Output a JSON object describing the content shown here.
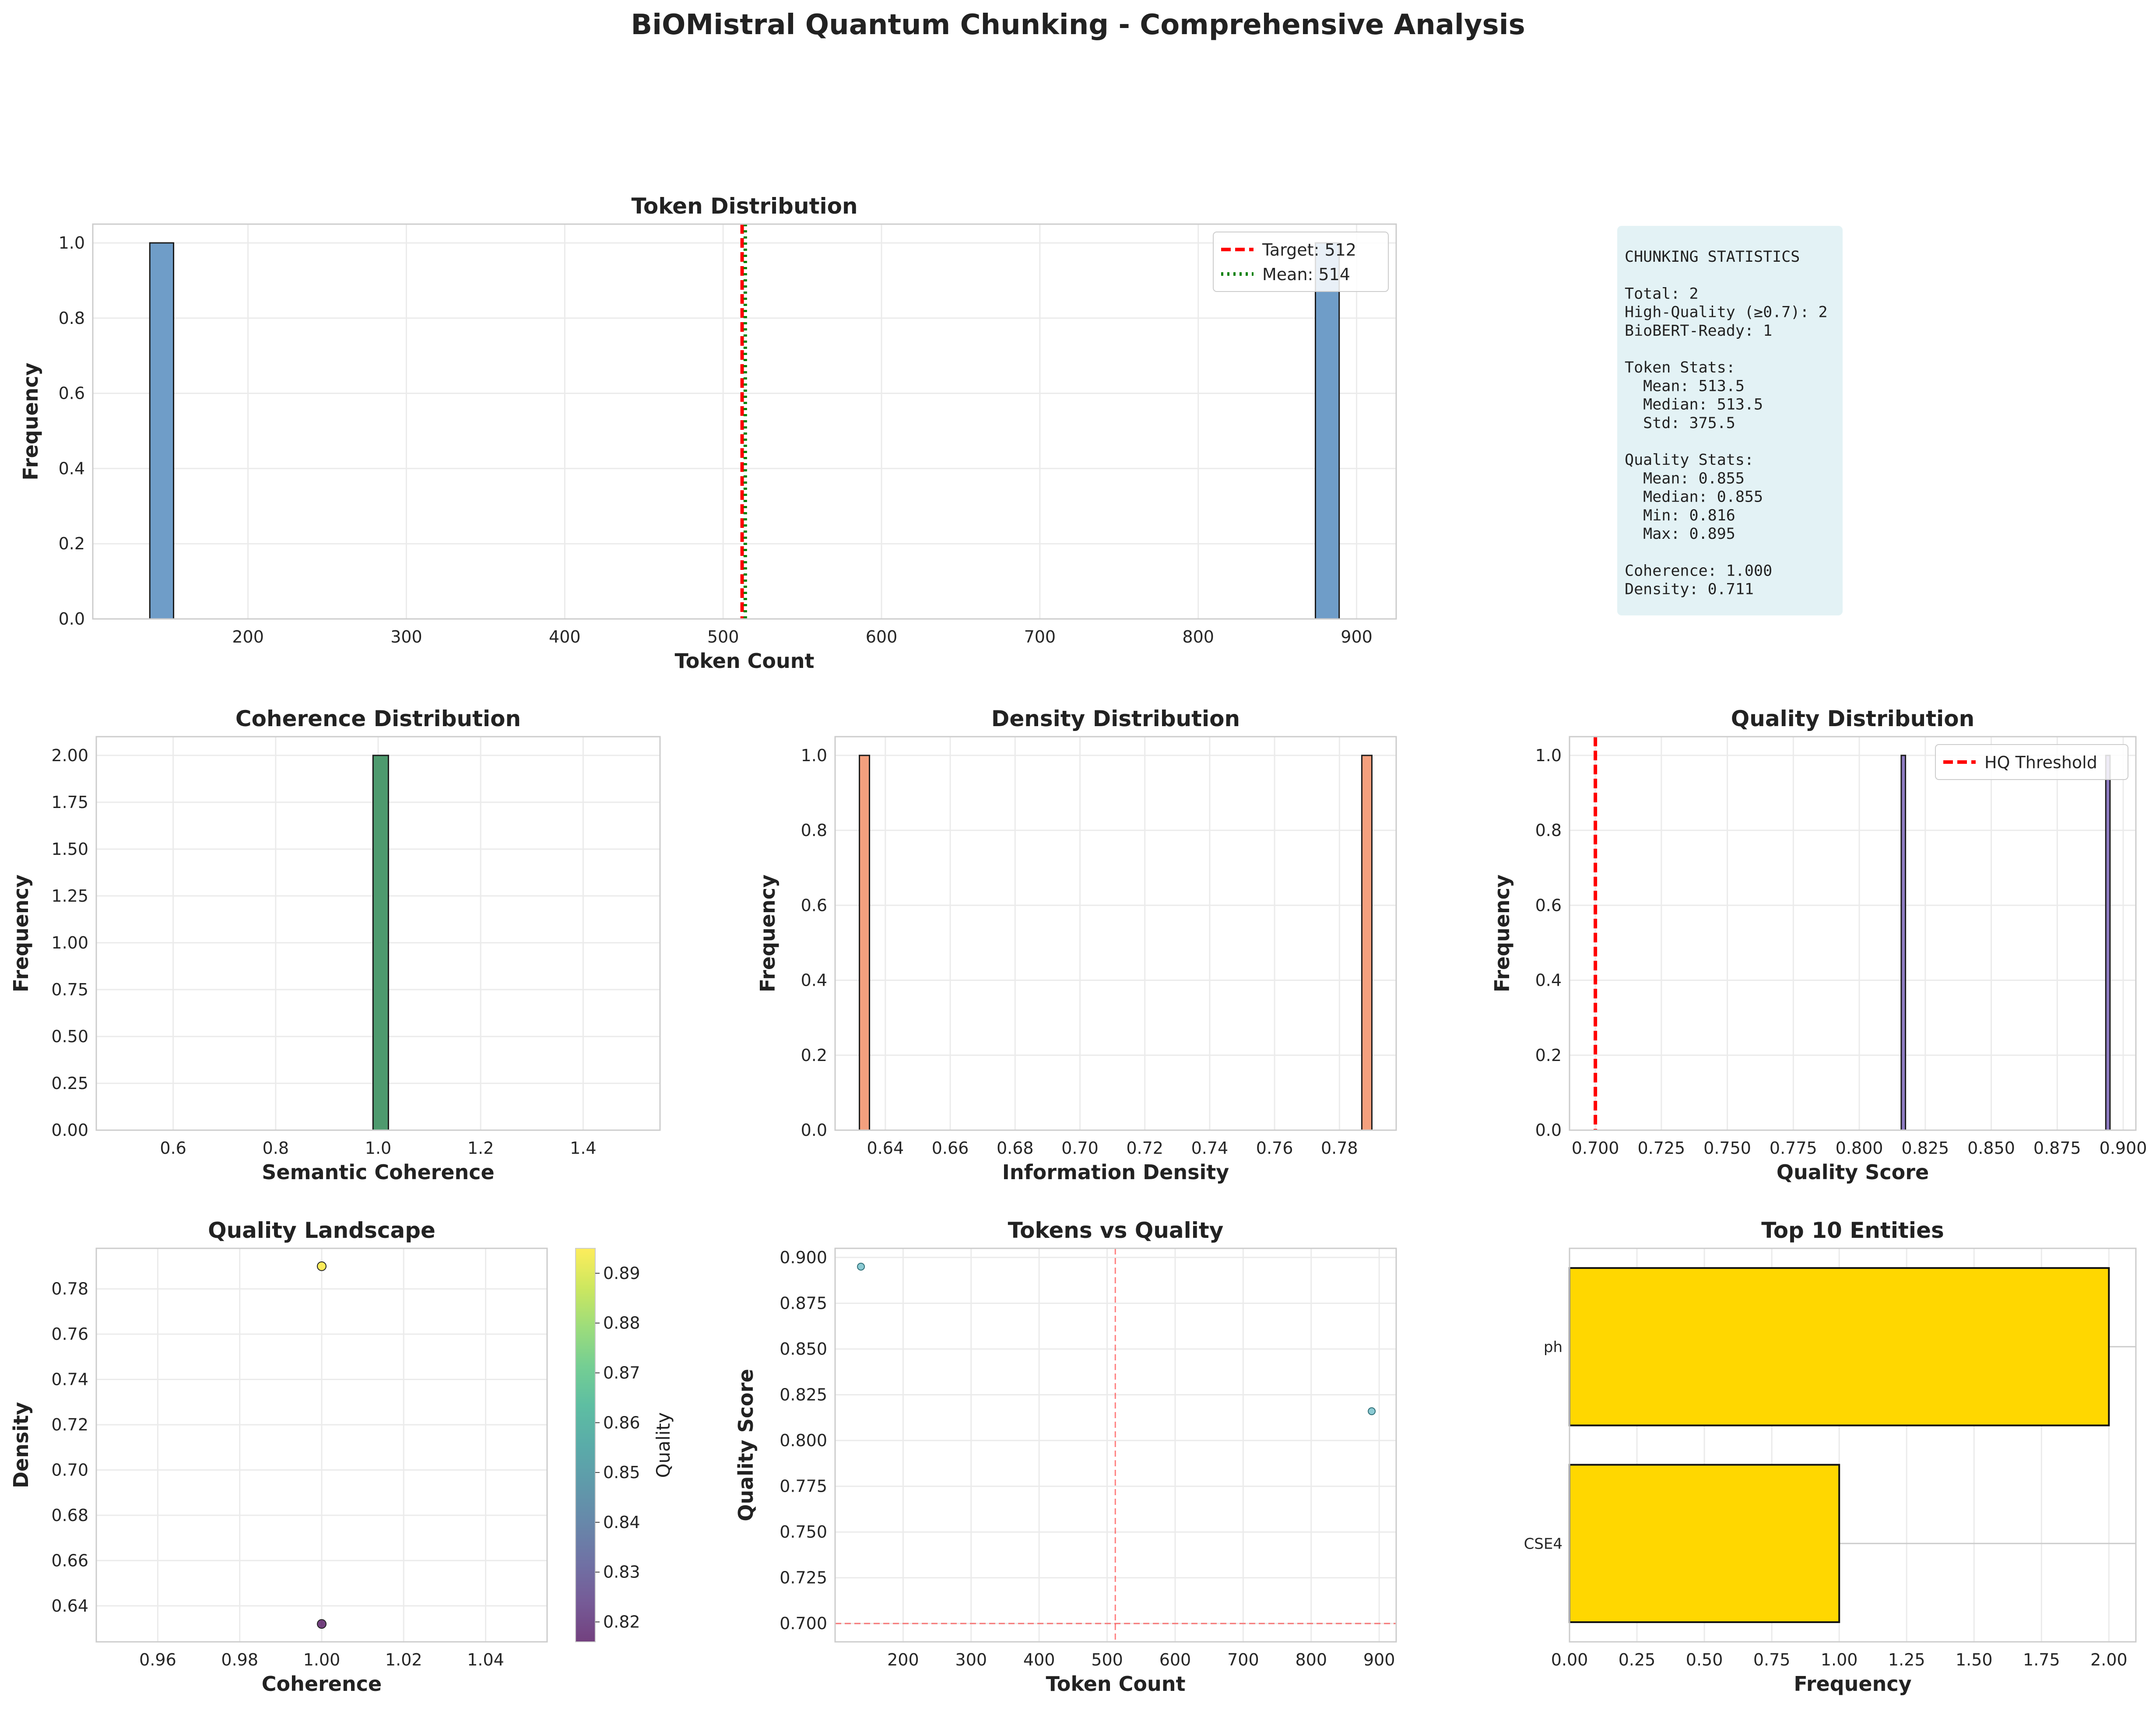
{
  "figure": {
    "suptitle": "BiOMistral Quantum Chunking - Comprehensive Analysis"
  },
  "colors": {
    "token_bar": "#6f9dc8",
    "coherence_bar": "#4e9a6e",
    "density_bar": "#f4a07e",
    "quality_bar": "#8e7cc3",
    "entity_bar": "#ffd700",
    "ref_red": "#ff0000",
    "ref_green": "#008000",
    "stats_box": "#e3f2f5"
  },
  "stats_panel": {
    "lines": [
      "CHUNKING STATISTICS",
      "",
      "Total: 2",
      "High-Quality (≥0.7): 2",
      "BioBERT-Ready: 1",
      "",
      "Token Stats:",
      "  Mean: 513.5",
      "  Median: 513.5",
      "  Std: 375.5",
      "",
      "Quality Stats:",
      "  Mean: 0.855",
      "  Median: 0.855",
      "  Min: 0.816",
      "  Max: 0.895",
      "",
      "Coherence: 1.000",
      "Density: 0.711"
    ]
  },
  "chart_data": [
    {
      "id": "token",
      "type": "bar",
      "title": "Token Distribution",
      "xlabel": "Token Count",
      "ylabel": "Frequency",
      "xlim": [
        102,
        925
      ],
      "ylim": [
        0,
        1.05
      ],
      "xticks": [
        200,
        300,
        400,
        500,
        600,
        700,
        800,
        900
      ],
      "yticks": [
        0.0,
        0.2,
        0.4,
        0.6,
        0.8,
        1.0
      ],
      "bars": [
        {
          "x0": 138,
          "x1": 153,
          "y": 1
        },
        {
          "x0": 874,
          "x1": 889,
          "y": 1
        }
      ],
      "baseline": [
        138,
        889
      ],
      "vlines": [
        {
          "x": 512,
          "style": "dashed",
          "color": "#ff0000",
          "label": "Target: 512"
        },
        {
          "x": 514,
          "style": "dotted",
          "color": "#008000",
          "label": "Mean: 514"
        }
      ],
      "legend": "upper-right",
      "grid": true
    },
    {
      "id": "coherence",
      "type": "bar",
      "title": "Coherence Distribution",
      "xlabel": "Semantic Coherence",
      "ylabel": "Frequency",
      "xlim": [
        0.45,
        1.55
      ],
      "ylim": [
        0,
        2.1
      ],
      "xticks": [
        0.6,
        0.8,
        1.0,
        1.2,
        1.4
      ],
      "yticks": [
        0.0,
        0.25,
        0.5,
        0.75,
        1.0,
        1.25,
        1.5,
        1.75,
        2.0
      ],
      "bars": [
        {
          "x0": 0.99,
          "x1": 1.02,
          "y": 2
        }
      ],
      "baseline": [
        0.5,
        1.5
      ],
      "grid": true
    },
    {
      "id": "density",
      "type": "bar",
      "title": "Density Distribution",
      "xlabel": "Information Density",
      "ylabel": "Frequency",
      "xlim": [
        0.6245,
        0.7975
      ],
      "ylim": [
        0,
        1.05
      ],
      "xticks": [
        0.64,
        0.66,
        0.68,
        0.7,
        0.72,
        0.74,
        0.76,
        0.78
      ],
      "yticks": [
        0.0,
        0.2,
        0.4,
        0.6,
        0.8,
        1.0
      ],
      "bars": [
        {
          "x0": 0.632,
          "x1": 0.6351,
          "y": 1
        },
        {
          "x0": 0.7869,
          "x1": 0.79,
          "y": 1
        }
      ],
      "baseline": [
        0.632,
        0.79
      ],
      "grid": true
    },
    {
      "id": "quality",
      "type": "bar",
      "title": "Quality Distribution",
      "xlabel": "Quality Score",
      "ylabel": "Frequency",
      "xlim": [
        0.6902,
        0.9048
      ],
      "ylim": [
        0,
        1.05
      ],
      "xticks": [
        0.7,
        0.725,
        0.75,
        0.775,
        0.8,
        0.825,
        0.85,
        0.875,
        0.9
      ],
      "tick_labels": [
        "0.700",
        "0.725",
        "0.750",
        "0.775",
        "0.800",
        "0.825",
        "0.850",
        "0.875",
        "0.900"
      ],
      "yticks": [
        0.0,
        0.2,
        0.4,
        0.6,
        0.8,
        1.0
      ],
      "bars": [
        {
          "x0": 0.8159,
          "x1": 0.8175,
          "y": 1
        },
        {
          "x0": 0.8934,
          "x1": 0.895,
          "y": 1
        }
      ],
      "baseline": [
        0.7,
        0.895
      ],
      "vlines": [
        {
          "x": 0.7,
          "style": "dashed",
          "color": "#ff0000",
          "label": "HQ Threshold"
        }
      ],
      "legend": "upper-right",
      "grid": true
    },
    {
      "id": "landscape",
      "type": "scatter",
      "title": "Quality Landscape",
      "xlabel": "Coherence",
      "ylabel": "Density",
      "colorbar_label": "Quality",
      "xlim": [
        0.945,
        1.055
      ],
      "ylim": [
        0.6241,
        0.7979
      ],
      "xticks": [
        0.96,
        0.98,
        1.0,
        1.02,
        1.04
      ],
      "yticks": [
        0.64,
        0.66,
        0.68,
        0.7,
        0.72,
        0.74,
        0.76,
        0.78
      ],
      "clim": [
        0.816,
        0.895
      ],
      "cticks": [
        0.82,
        0.83,
        0.84,
        0.85,
        0.86,
        0.87,
        0.88,
        0.89
      ],
      "points": [
        {
          "x": 1.0,
          "y": 0.79,
          "c": 0.895
        },
        {
          "x": 1.0,
          "y": 0.632,
          "c": 0.816
        }
      ],
      "grid": true
    },
    {
      "id": "tvq",
      "type": "scatter",
      "title": "Tokens vs Quality",
      "xlabel": "Token Count",
      "ylabel": "Quality Score",
      "xlim": [
        100,
        925
      ],
      "ylim": [
        0.69,
        0.905
      ],
      "xticks": [
        200,
        300,
        400,
        500,
        600,
        700,
        800,
        900
      ],
      "yticks": [
        0.7,
        0.725,
        0.75,
        0.775,
        0.8,
        0.825,
        0.85,
        0.875,
        0.9
      ],
      "tick_labels_y": [
        "0.700",
        "0.725",
        "0.750",
        "0.775",
        "0.800",
        "0.825",
        "0.850",
        "0.875",
        "0.900"
      ],
      "points": [
        {
          "x": 138,
          "y": 0.895
        },
        {
          "x": 889,
          "y": 0.816
        }
      ],
      "vlines": [
        {
          "x": 512
        }
      ],
      "hlines": [
        {
          "y": 0.7
        }
      ],
      "grid": true
    },
    {
      "id": "entities",
      "type": "bar",
      "orientation": "horizontal",
      "title": "Top 10 Entities",
      "xlabel": "Frequency",
      "xlim": [
        0,
        2.1
      ],
      "xticks": [
        0.0,
        0.25,
        0.5,
        0.75,
        1.0,
        1.25,
        1.5,
        1.75,
        2.0
      ],
      "tick_labels": [
        "0.00",
        "0.25",
        "0.50",
        "0.75",
        "1.00",
        "1.25",
        "1.50",
        "1.75",
        "2.00"
      ],
      "categories": [
        "ph",
        "CSE4"
      ],
      "values": [
        2,
        1
      ],
      "grid": true
    }
  ]
}
